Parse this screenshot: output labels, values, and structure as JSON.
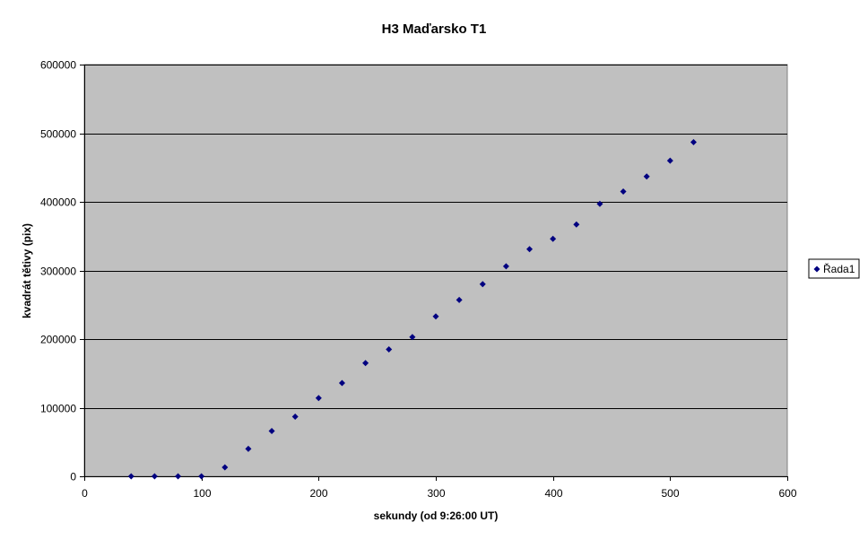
{
  "chart_data": {
    "type": "scatter",
    "title": "H3 Maďarsko   T1",
    "xlabel": "sekundy (od 9:26:00 UT)",
    "ylabel": "kvadrát tětivy (pix)",
    "xlim": [
      0,
      600
    ],
    "ylim": [
      0,
      600000
    ],
    "xticks": [
      0,
      100,
      200,
      300,
      400,
      500,
      600
    ],
    "yticks": [
      0,
      100000,
      200000,
      300000,
      400000,
      500000,
      600000
    ],
    "grid": "horizontal",
    "legend_position": "right",
    "plot_background": "#c0c0c0",
    "series": [
      {
        "name": "Řada1",
        "color": "#000080",
        "marker": "diamond",
        "x": [
          40,
          60,
          80,
          100,
          120,
          140,
          160,
          180,
          200,
          220,
          240,
          260,
          280,
          300,
          320,
          340,
          360,
          380,
          400,
          420,
          440,
          460,
          480,
          500,
          520
        ],
        "y": [
          0,
          0,
          0,
          0,
          13000,
          40000,
          66000,
          87000,
          114000,
          136000,
          165000,
          185000,
          203000,
          233000,
          257000,
          280000,
          306000,
          331000,
          346000,
          367000,
          397000,
          415000,
          437000,
          460000,
          487000
        ]
      }
    ]
  }
}
